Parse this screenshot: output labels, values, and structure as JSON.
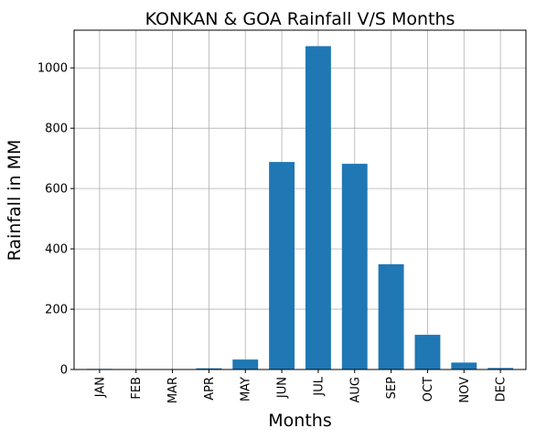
{
  "chart_data": {
    "type": "bar",
    "title": "KONKAN & GOA Rainfall V/S Months",
    "xlabel": "Months",
    "ylabel": "Rainfall in MM",
    "categories": [
      "JAN",
      "FEB",
      "MAR",
      "APR",
      "MAY",
      "JUN",
      "JUL",
      "AUG",
      "SEP",
      "OCT",
      "NOV",
      "DEC"
    ],
    "values": [
      2,
      1,
      1,
      4,
      33,
      688,
      1072,
      682,
      349,
      115,
      23,
      5
    ],
    "ylim": [
      0,
      1125
    ],
    "yticks": [
      0,
      200,
      400,
      600,
      800,
      1000
    ],
    "grid": true,
    "bar_color": "#1f77b4",
    "grid_color": "#b0b0b0"
  }
}
